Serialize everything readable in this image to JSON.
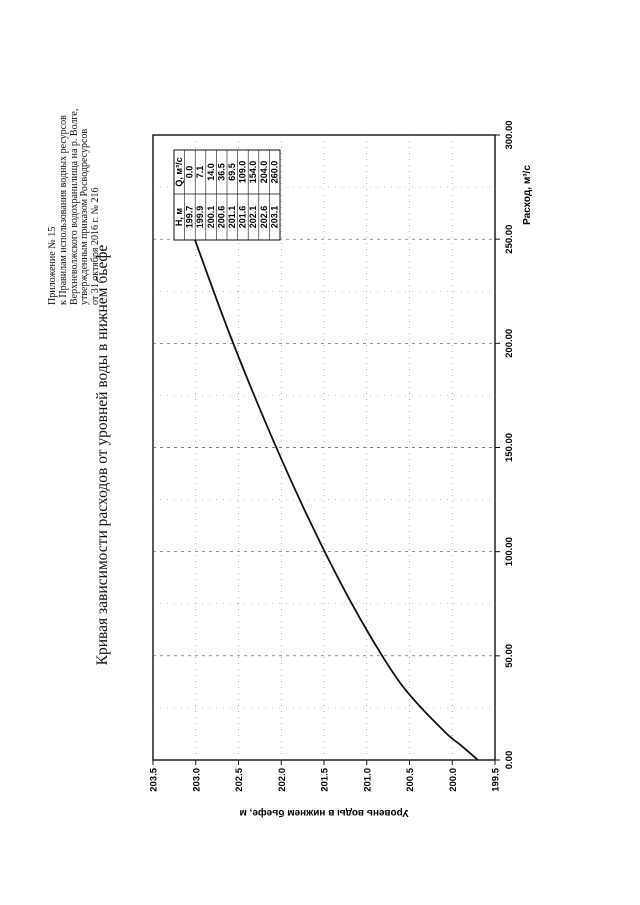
{
  "header": {
    "lines": [
      "Приложение № 15",
      "к Правилам использования водных ресурсов",
      "Верхневолжского водохранилища на р. Волге,",
      "утвержденным приказом Росводресурсов",
      "от 31 октября 2016 г. № 216"
    ]
  },
  "chart_data": {
    "type": "line",
    "orientation": "page rotated 90° counter-clockwise",
    "title": "Кривая зависимости расходов от уровней воды в нижнем бьефе",
    "xlabel": "Расход, м³/с",
    "ylabel": "Уровень воды в нижнем бьефе,  м",
    "xlim": [
      0,
      300
    ],
    "ylim": [
      199.5,
      203.5
    ],
    "x_ticks": [
      "0.00",
      "50.00",
      "100.00",
      "150.00",
      "200.00",
      "250.00",
      "300.00"
    ],
    "y_ticks": [
      "199.5",
      "200.0",
      "200.5",
      "201.0",
      "201.5",
      "202.0",
      "202.5",
      "203.0",
      "203.5"
    ],
    "grid": "dashed",
    "series": [
      {
        "x": [
          0.0,
          7.1,
          14.0,
          36.5,
          69.5,
          109.0,
          154.0,
          204.0,
          260.0
        ],
        "y": [
          199.7,
          199.9,
          200.1,
          200.6,
          201.1,
          201.6,
          202.1,
          202.6,
          203.1
        ]
      }
    ],
    "table": {
      "columns": [
        "Н, м",
        "Q, м³/с"
      ],
      "rows": [
        [
          "199.7",
          "0.0"
        ],
        [
          "199.9",
          "7.1"
        ],
        [
          "200.1",
          "14.0"
        ],
        [
          "200.6",
          "36.5"
        ],
        [
          "201.1",
          "69.5"
        ],
        [
          "201.6",
          "109.0"
        ],
        [
          "202.1",
          "154.0"
        ],
        [
          "202.6",
          "204.0"
        ],
        [
          "203.1",
          "260.0"
        ]
      ]
    }
  }
}
